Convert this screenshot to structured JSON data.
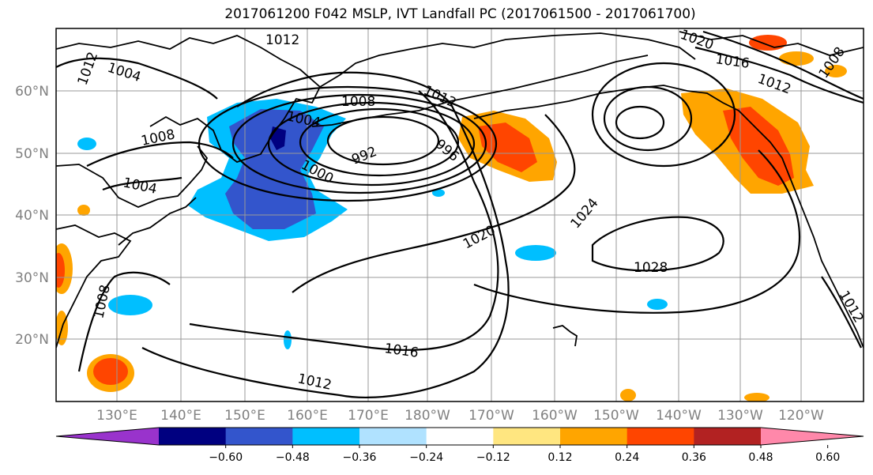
{
  "title": "2017061200 F042 MSLP, IVT Landfall PC (2017061500 - 2017061700)",
  "lat_labels": [
    "60°N",
    "50°N",
    "40°N",
    "30°N",
    "20°N"
  ],
  "lon_labels": [
    "130°E",
    "140°E",
    "150°E",
    "160°E",
    "170°E",
    "180°W",
    "170°W",
    "160°W",
    "150°W",
    "140°W",
    "130°W",
    "120°W"
  ],
  "isobar_labels": [
    "1012",
    "1004",
    "1012",
    "1008",
    "1004",
    "1008",
    "1004",
    "1012",
    "992",
    "1000",
    "996",
    "1020",
    "1024",
    "1028",
    "1016",
    "1012",
    "1008",
    "1016",
    "1012",
    "1008",
    "1020",
    "1012"
  ],
  "colorbar": {
    "tick_labels": [
      "−0.60",
      "−0.48",
      "−0.36",
      "−0.24",
      "−0.12",
      "0.12",
      "0.24",
      "0.36",
      "0.48",
      "0.60"
    ],
    "colors": [
      "#9933cc",
      "#000080",
      "#3355cc",
      "#00bfff",
      "#b0e2ff",
      "#ffffff",
      "#ffe680",
      "#ffa500",
      "#ff4500",
      "#b22222",
      "#ff88aa"
    ]
  }
}
